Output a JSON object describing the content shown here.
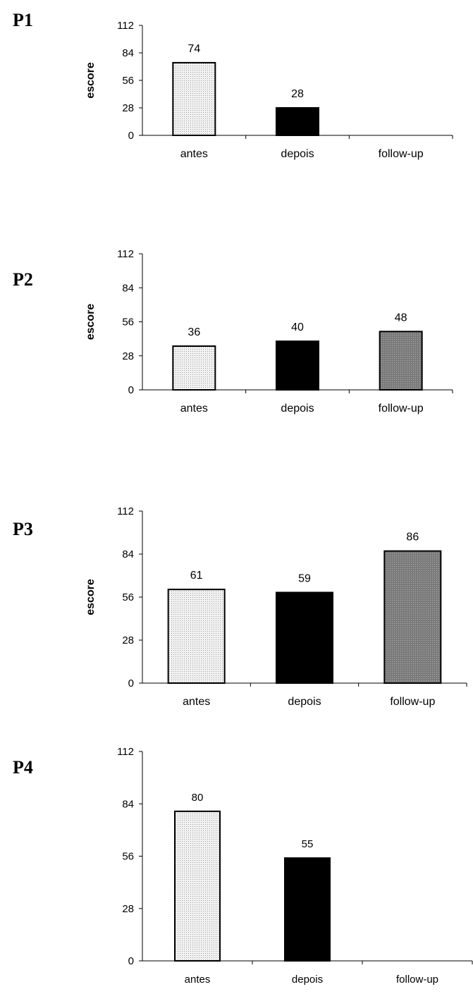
{
  "chart_data": [
    {
      "type": "bar",
      "panel": "P1",
      "ylabel": "escore",
      "ylim": [
        0,
        112
      ],
      "yticks": [
        "0",
        "28",
        "56",
        "84",
        "112"
      ],
      "categories": [
        "antes",
        "depois",
        "follow-up"
      ],
      "values": [
        74,
        28,
        null
      ],
      "colors": [
        "#e4e4e4",
        "#000000",
        "#8a8a8a"
      ]
    },
    {
      "type": "bar",
      "panel": "P2",
      "ylabel": "escore",
      "ylim": [
        0,
        112
      ],
      "yticks": [
        "0",
        "28",
        "56",
        "84",
        "112"
      ],
      "categories": [
        "antes",
        "depois",
        "follow-up"
      ],
      "values": [
        36,
        40,
        48
      ],
      "colors": [
        "#e4e4e4",
        "#000000",
        "#8a8a8a"
      ]
    },
    {
      "type": "bar",
      "panel": "P3",
      "ylabel": "escore",
      "ylim": [
        0,
        112
      ],
      "yticks": [
        "0",
        "28",
        "56",
        "84",
        "112"
      ],
      "categories": [
        "antes",
        "depois",
        "follow-up"
      ],
      "values": [
        61,
        59,
        86
      ],
      "colors": [
        "#e4e4e4",
        "#000000",
        "#8a8a8a"
      ]
    },
    {
      "type": "bar",
      "panel": "P4",
      "ylabel": "",
      "ylim": [
        0,
        112
      ],
      "yticks": [
        "0",
        "28",
        "56",
        "84",
        "112"
      ],
      "categories": [
        "antes",
        "depois",
        "follow-up"
      ],
      "values": [
        80,
        55,
        null
      ],
      "colors": [
        "#e4e4e4",
        "#000000",
        "#8a8a8a"
      ]
    }
  ]
}
